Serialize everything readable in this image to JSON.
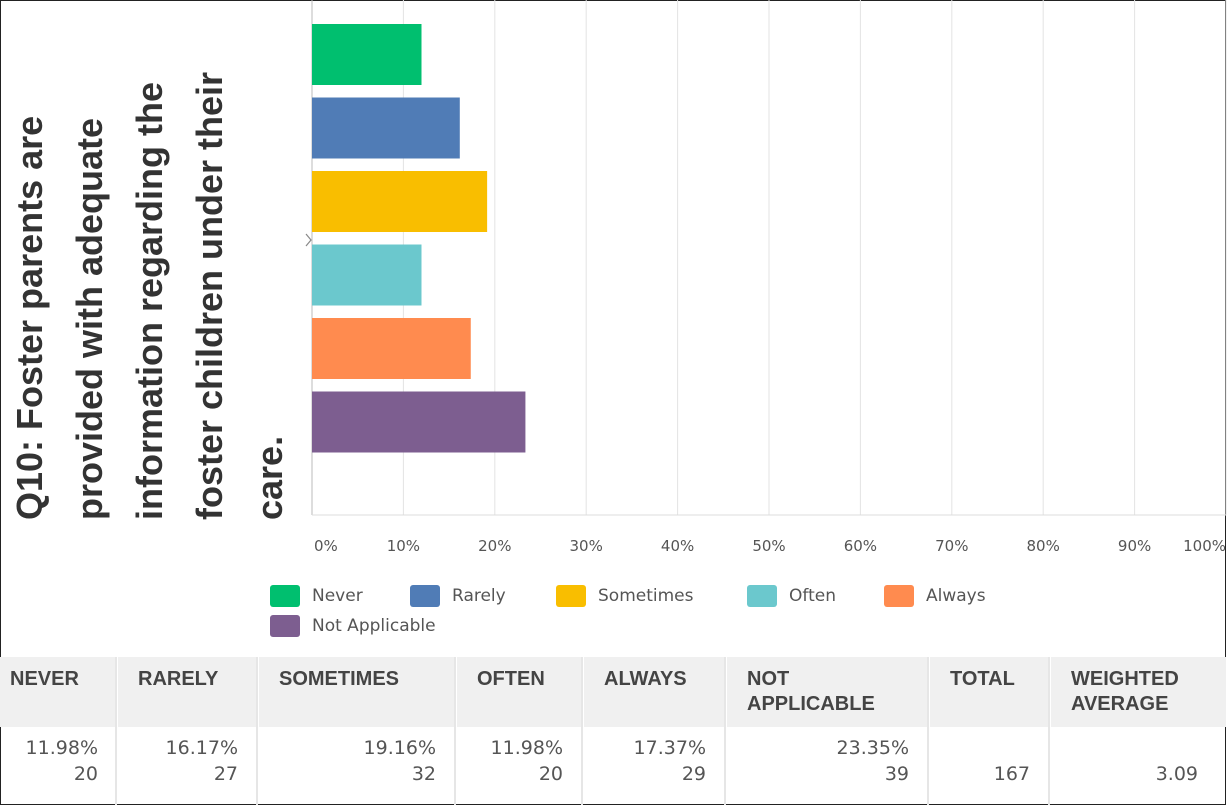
{
  "title": "Q10: Foster parents are provided with adequate information regarding the foster children under their care.",
  "colors": {
    "Never": "#00bf6f",
    "Rarely": "#507cb6",
    "Sometimes": "#f9be00",
    "Often": "#6bc8cd",
    "Always": "#ff8b4f",
    "Not Applicable": "#7d5e90"
  },
  "chart_data": {
    "type": "bar",
    "orientation": "horizontal",
    "title": "Q10: Foster parents are provided with adequate information regarding the foster children under their care.",
    "categories": [
      "Never",
      "Rarely",
      "Sometimes",
      "Often",
      "Always",
      "Not Applicable"
    ],
    "values": [
      11.98,
      16.17,
      19.16,
      11.98,
      17.37,
      23.35
    ],
    "x_ticks": [
      "0%",
      "10%",
      "20%",
      "30%",
      "40%",
      "50%",
      "60%",
      "70%",
      "80%",
      "90%",
      "100%"
    ],
    "xlim": [
      0,
      100
    ],
    "grid": true,
    "legend": [
      "Never",
      "Rarely",
      "Sometimes",
      "Often",
      "Always",
      "Not Applicable"
    ],
    "legend_position": "bottom"
  },
  "table": {
    "headers": [
      "NEVER",
      "RARELY",
      "SOMETIMES",
      "OFTEN",
      "ALWAYS",
      "NOT APPLICABLE",
      "TOTAL",
      "WEIGHTED AVERAGE"
    ],
    "percents": [
      "11.98%",
      "16.17%",
      "19.16%",
      "11.98%",
      "17.37%",
      "23.35%"
    ],
    "counts": [
      "20",
      "27",
      "32",
      "20",
      "29",
      "39"
    ],
    "total": "167",
    "weighted_average": "3.09"
  }
}
